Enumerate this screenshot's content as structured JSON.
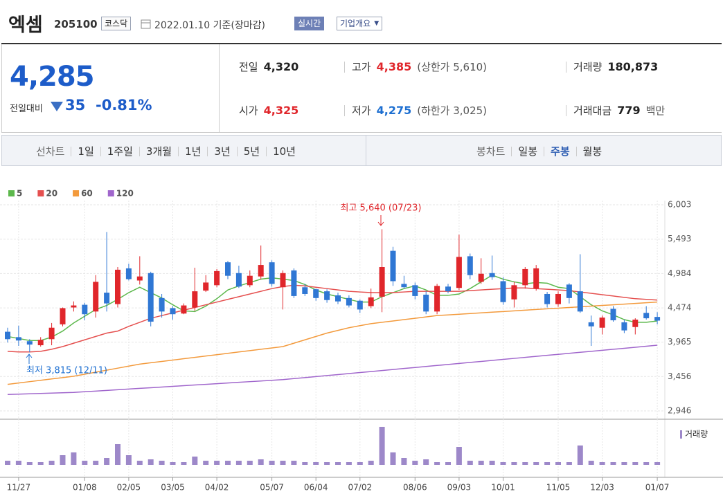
{
  "header": {
    "name": "엑셈",
    "code": "205100",
    "market": "코스닥",
    "date": "2022.01.10 기준(장마감)",
    "realtime": "실시간",
    "company": "기업개요"
  },
  "quote": {
    "price": "4,285",
    "change_label": "전일대비",
    "change": "35",
    "change_rate": "-0.81%",
    "color": "#1d5cc9",
    "items": [
      {
        "label": "전일",
        "value": "4,320",
        "color": "#222222"
      },
      {
        "label": "고가",
        "value": "4,385",
        "note": "(상한가 5,610)",
        "color": "#e0262b"
      },
      {
        "label": "거래량",
        "value": "180,873",
        "color": "#222222"
      },
      {
        "label": "시가",
        "value": "4,325",
        "color": "#e0262b"
      },
      {
        "label": "저가",
        "value": "4,275",
        "note": "(하한가 3,025)",
        "color": "#1d6fd1"
      },
      {
        "label": "거래대금",
        "value": "779",
        "note": "백만",
        "color": "#222222"
      }
    ]
  },
  "tabs": {
    "line_label": "선차트",
    "line": [
      "1일",
      "1주일",
      "3개월",
      "1년",
      "3년",
      "5년",
      "10년"
    ],
    "candle_label": "봉차트",
    "candle": [
      "일봉",
      "주봉",
      "월봉"
    ],
    "selected_candle": 1
  },
  "chart_data": {
    "type": "candlestick",
    "categories": [
      null,
      "11/27",
      null,
      null,
      null,
      null,
      null,
      "01/08",
      null,
      null,
      null,
      "02/05",
      null,
      null,
      null,
      "03/05",
      null,
      null,
      null,
      "04/02",
      null,
      null,
      null,
      null,
      "05/07",
      null,
      null,
      null,
      "06/04",
      null,
      null,
      null,
      "07/02",
      null,
      null,
      null,
      null,
      "08/06",
      null,
      null,
      null,
      "09/03",
      null,
      null,
      null,
      "10/01",
      null,
      null,
      null,
      null,
      "11/05",
      null,
      null,
      null,
      "12/03",
      null,
      null,
      null,
      null,
      "01/07"
    ],
    "open": [
      4120,
      4040,
      3980,
      3920,
      4010,
      4230,
      4480,
      4520,
      4420,
      4700,
      4530,
      5060,
      4880,
      4990,
      4620,
      4470,
      4390,
      4480,
      4730,
      4810,
      5150,
      4990,
      4810,
      4940,
      5150,
      4780,
      5030,
      4780,
      4750,
      4720,
      4660,
      4620,
      4580,
      4500,
      4640,
      5320,
      4830,
      4810,
      4670,
      4420,
      4790,
      4770,
      5240,
      4860,
      4990,
      4870,
      4600,
      4810,
      4760,
      4680,
      4530,
      4820,
      4720,
      4260,
      4180,
      4460,
      4260,
      4190,
      4400,
      4340
    ],
    "high": [
      4180,
      4210,
      4010,
      4040,
      4250,
      4480,
      4570,
      4550,
      4960,
      5600,
      5080,
      5130,
      5240,
      5010,
      4680,
      4500,
      4540,
      5070,
      4960,
      5050,
      5170,
      5100,
      5030,
      5400,
      5180,
      5030,
      5060,
      4830,
      4760,
      4750,
      4700,
      4660,
      4600,
      4760,
      5640,
      5380,
      4950,
      4850,
      4720,
      4830,
      4830,
      5560,
      5280,
      5210,
      5250,
      4930,
      4860,
      5080,
      5110,
      4710,
      4720,
      4840,
      5270,
      4360,
      4360,
      4500,
      4300,
      4320,
      4500,
      4410
    ],
    "low": [
      3960,
      3910,
      3815,
      3900,
      3920,
      4200,
      4420,
      4290,
      4330,
      4420,
      4480,
      4880,
      4820,
      4200,
      4330,
      4300,
      4380,
      4430,
      4710,
      4780,
      4900,
      4770,
      4780,
      4900,
      4790,
      4450,
      4620,
      4650,
      4580,
      4550,
      4530,
      4480,
      4400,
      4470,
      4410,
      4800,
      4760,
      4600,
      4380,
      4380,
      4690,
      4740,
      4900,
      4830,
      4890,
      4520,
      4480,
      4760,
      4730,
      4480,
      4490,
      4540,
      4400,
      3910,
      4080,
      4270,
      4100,
      4080,
      4300,
      4230
    ],
    "close": [
      4010,
      3990,
      3930,
      4000,
      4180,
      4470,
      4510,
      4380,
      4860,
      4540,
      5040,
      4900,
      4940,
      4270,
      4420,
      4380,
      4510,
      4720,
      4850,
      5020,
      4950,
      4790,
      4950,
      5110,
      4830,
      4990,
      4650,
      4680,
      4620,
      4590,
      4570,
      4510,
      4450,
      4630,
      5080,
      4870,
      4780,
      4650,
      4420,
      4800,
      4720,
      5230,
      4960,
      4980,
      4930,
      4560,
      4810,
      5050,
      5060,
      4530,
      4680,
      4620,
      4420,
      4200,
      4330,
      4290,
      4140,
      4300,
      4320,
      4285
    ],
    "up_color": "#e0262b",
    "down_color": "#2f77d4",
    "series": [
      {
        "name": "5",
        "color": "#5cb84c",
        "values": [
          4050,
          4020,
          3990,
          3990,
          4040,
          4130,
          4250,
          4350,
          4450,
          4510,
          4600,
          4700,
          4780,
          4700,
          4620,
          4520,
          4430,
          4420,
          4500,
          4610,
          4740,
          4800,
          4850,
          4900,
          4920,
          4900,
          4880,
          4820,
          4740,
          4680,
          4640,
          4600,
          4560,
          4560,
          4640,
          4700,
          4760,
          4800,
          4740,
          4660,
          4660,
          4680,
          4760,
          4860,
          4960,
          4900,
          4860,
          4830,
          4850,
          4840,
          4780,
          4760,
          4640,
          4520,
          4430,
          4370,
          4300,
          4260,
          4260,
          4280
        ]
      },
      {
        "name": "20",
        "color": "#e5504f",
        "values": [
          3830,
          3820,
          3820,
          3830,
          3860,
          3900,
          3950,
          4000,
          4050,
          4100,
          4130,
          4200,
          4260,
          4320,
          4360,
          4400,
          4440,
          4480,
          4520,
          4560,
          4600,
          4640,
          4680,
          4720,
          4760,
          4790,
          4810,
          4800,
          4780,
          4760,
          4740,
          4720,
          4710,
          4700,
          4700,
          4700,
          4710,
          4720,
          4720,
          4720,
          4720,
          4720,
          4730,
          4740,
          4750,
          4760,
          4770,
          4770,
          4760,
          4750,
          4740,
          4730,
          4710,
          4690,
          4670,
          4650,
          4630,
          4610,
          4600,
          4590
        ]
      },
      {
        "name": "60",
        "color": "#f39a3c",
        "values": [
          3340,
          3360,
          3380,
          3400,
          3420,
          3440,
          3460,
          3490,
          3520,
          3550,
          3580,
          3610,
          3640,
          3660,
          3680,
          3700,
          3720,
          3740,
          3760,
          3780,
          3800,
          3820,
          3840,
          3860,
          3880,
          3900,
          3950,
          4000,
          4050,
          4100,
          4140,
          4180,
          4210,
          4240,
          4260,
          4280,
          4300,
          4320,
          4340,
          4360,
          4370,
          4380,
          4390,
          4400,
          4410,
          4420,
          4430,
          4440,
          4450,
          4460,
          4470,
          4480,
          4490,
          4500,
          4510,
          4520,
          4530,
          4540,
          4550,
          4560
        ]
      },
      {
        "name": "120",
        "color": "#a066cc",
        "values": [
          3190,
          3195,
          3200,
          3205,
          3210,
          3215,
          3220,
          3230,
          3240,
          3250,
          3260,
          3270,
          3280,
          3290,
          3300,
          3310,
          3320,
          3330,
          3340,
          3350,
          3360,
          3370,
          3380,
          3390,
          3400,
          3410,
          3425,
          3440,
          3455,
          3470,
          3485,
          3500,
          3515,
          3530,
          3545,
          3560,
          3575,
          3590,
          3605,
          3620,
          3635,
          3650,
          3665,
          3680,
          3695,
          3710,
          3725,
          3740,
          3755,
          3770,
          3785,
          3800,
          3815,
          3830,
          3845,
          3860,
          3875,
          3890,
          3905,
          3920
        ]
      }
    ],
    "volume": {
      "name": "거래량",
      "color": "#9d88c9",
      "values": [
        6,
        6,
        4,
        4,
        6,
        14,
        18,
        6,
        6,
        10,
        30,
        14,
        6,
        8,
        6,
        4,
        4,
        12,
        6,
        6,
        6,
        6,
        6,
        8,
        6,
        6,
        6,
        4,
        4,
        4,
        4,
        4,
        4,
        6,
        55,
        18,
        10,
        6,
        8,
        4,
        4,
        26,
        6,
        6,
        6,
        4,
        4,
        4,
        4,
        4,
        4,
        4,
        28,
        6,
        4,
        4,
        4,
        4,
        4,
        4
      ]
    },
    "ylim": [
      2833,
      6065
    ],
    "yticks": [
      {
        "value": 6003,
        "label": "6,003"
      },
      {
        "value": 5493,
        "label": "5,493"
      },
      {
        "value": 4984,
        "label": "4,984"
      },
      {
        "value": 4474,
        "label": "4,474"
      },
      {
        "value": 3965,
        "label": "3,965"
      },
      {
        "value": 3456,
        "label": "3,456"
      },
      {
        "value": 2946,
        "label": "2,946"
      }
    ],
    "grid": true,
    "annotations": [
      {
        "text": "최고 5,640 (07/23)",
        "color": "#e0262b"
      },
      {
        "text": "최저 3,815 (12/11)",
        "color": "#1d6fd1"
      }
    ]
  }
}
